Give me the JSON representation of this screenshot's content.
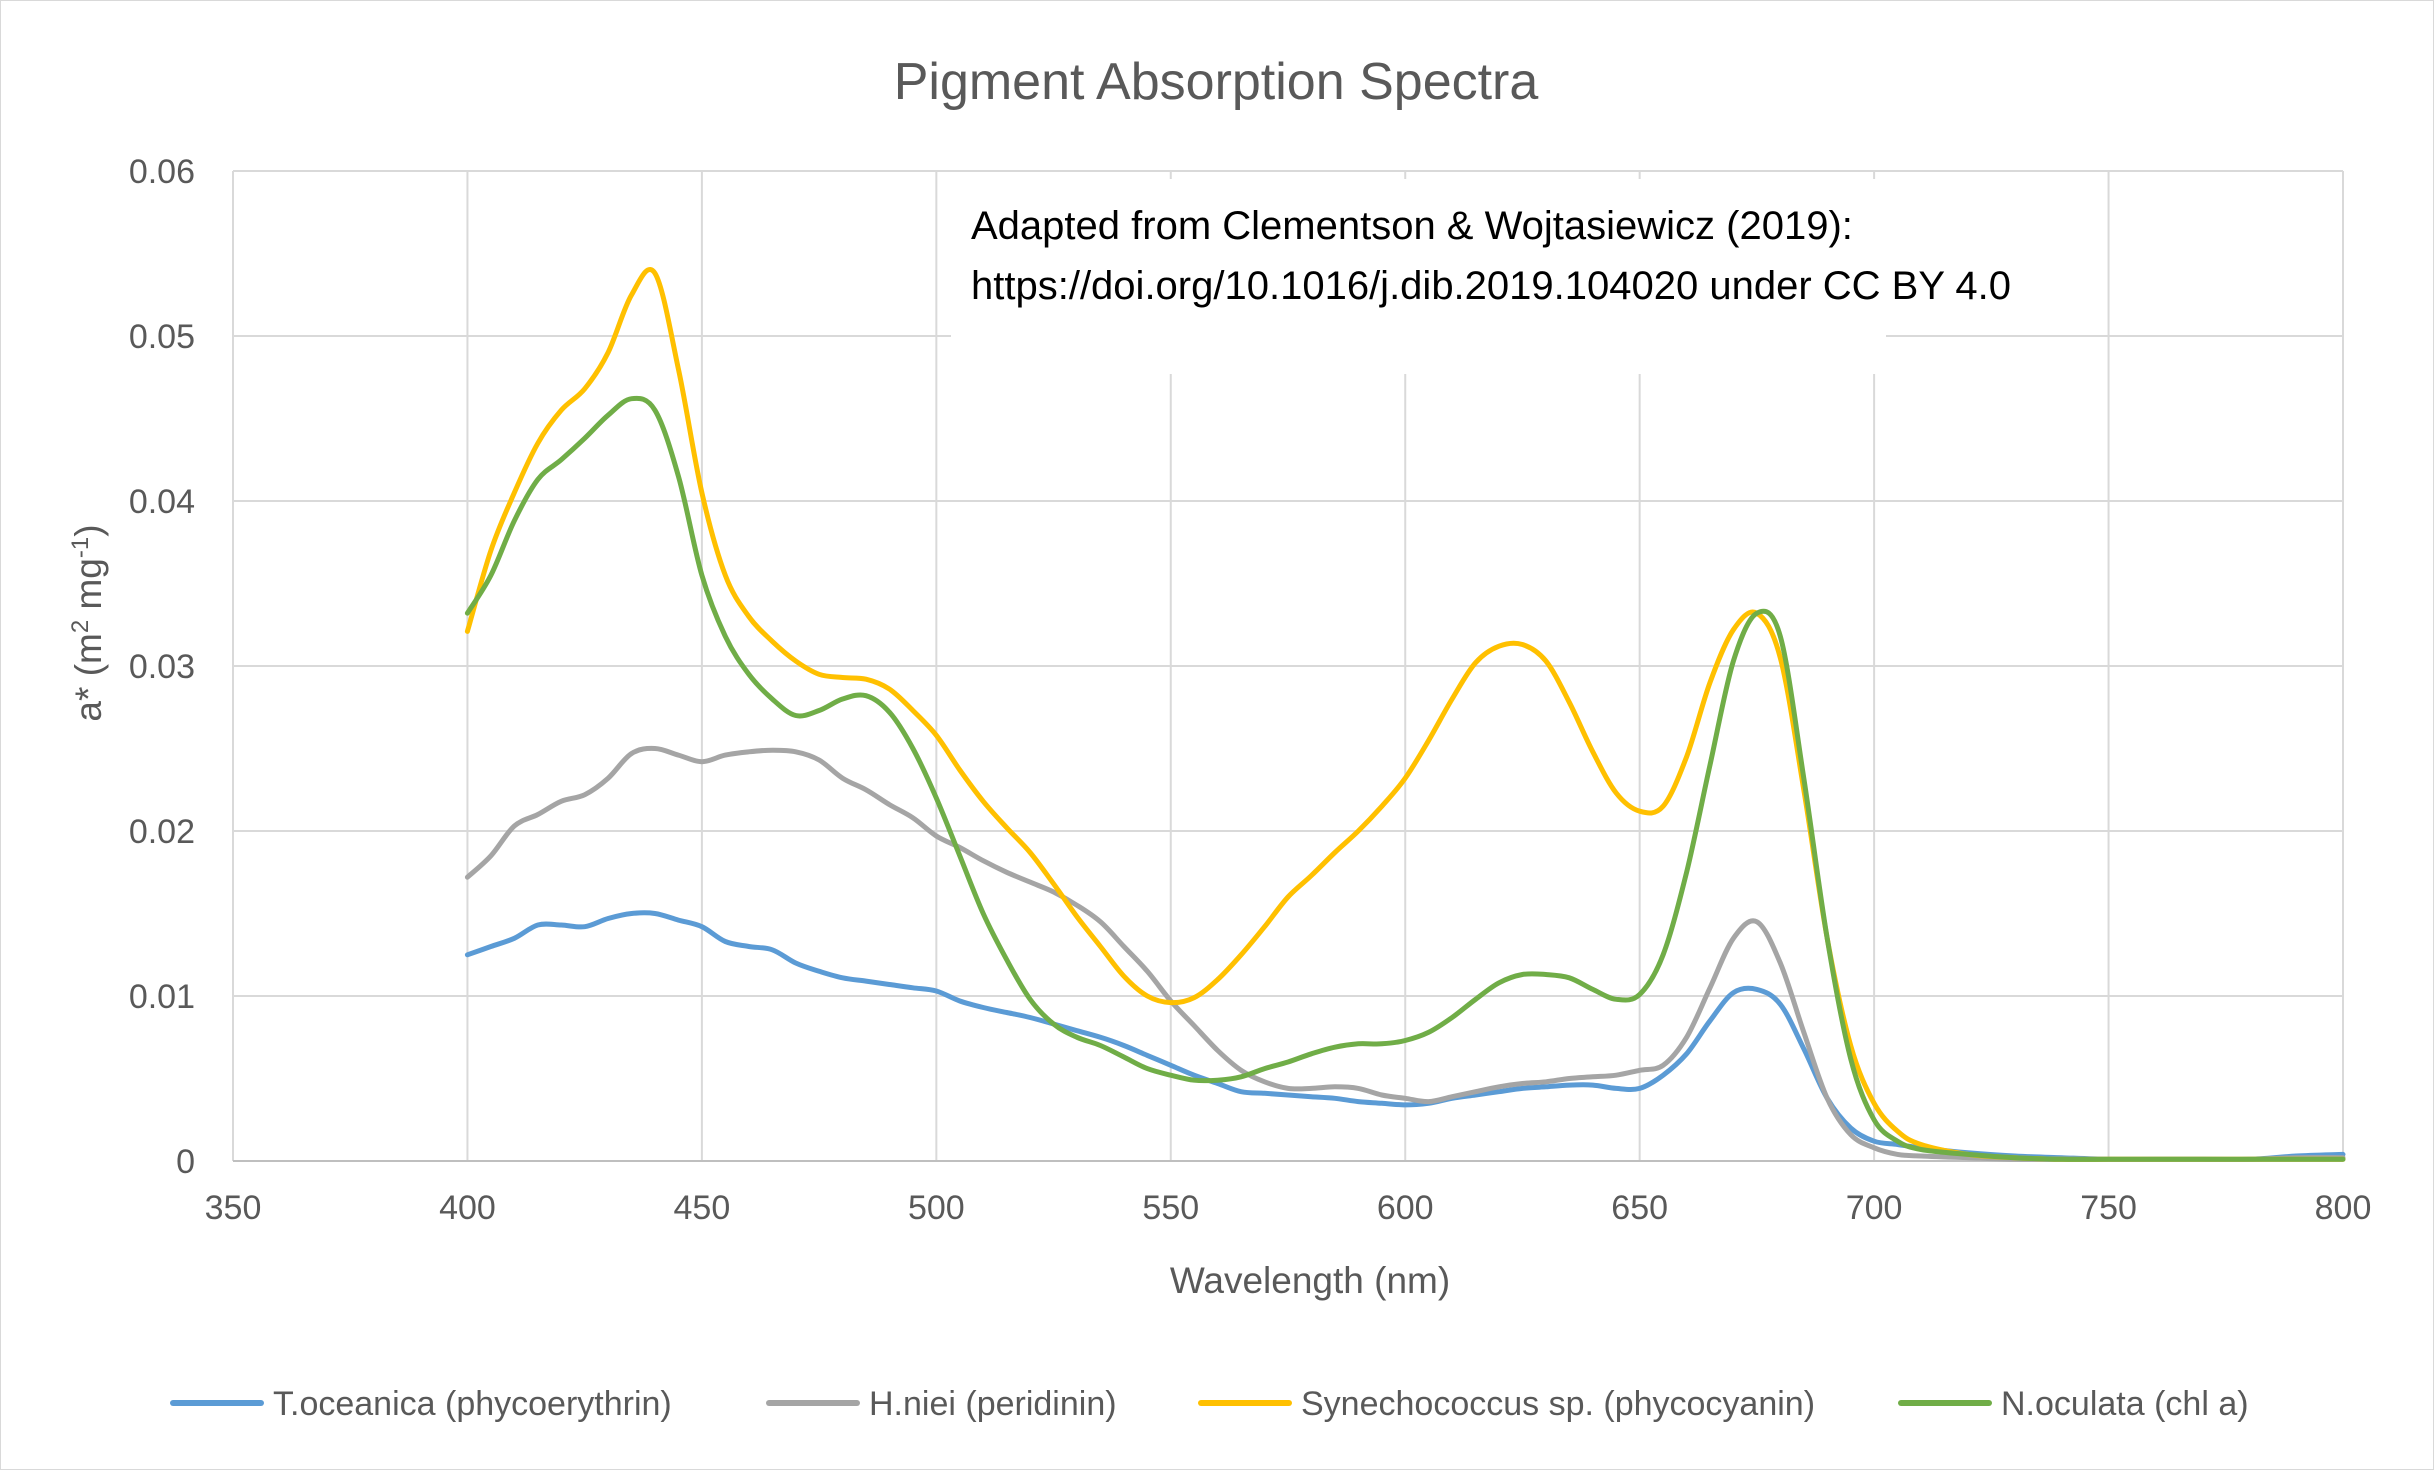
{
  "chart_data": {
    "type": "line",
    "title": "Pigment Absorption Spectra",
    "xlabel": "Wavelength (nm)",
    "ylabel": {
      "prefix": "a* (m",
      "sup1": "2",
      "middle": " mg",
      "sup2": "-1",
      "suffix": ")"
    },
    "xlim": [
      350,
      800
    ],
    "ylim": [
      0,
      0.06
    ],
    "x_ticks": [
      350,
      400,
      450,
      500,
      550,
      600,
      650,
      700,
      750,
      800
    ],
    "y_ticks": [
      0,
      0.01,
      0.02,
      0.03,
      0.04,
      0.05,
      0.06
    ],
    "x_tick_labels": [
      "350",
      "400",
      "450",
      "500",
      "550",
      "600",
      "650",
      "700",
      "750",
      "800"
    ],
    "y_tick_labels": [
      "0",
      "0.01",
      "0.02",
      "0.03",
      "0.04",
      "0.05",
      "0.06"
    ],
    "grid": true,
    "legend_position": "bottom",
    "annotation": {
      "line1": "Adapted from Clementson & Wojtasiewicz (2019):",
      "line2": "https://doi.org/10.1016/j.dib.2019.104020 under CC BY 4.0"
    },
    "series": [
      {
        "name": "T.oceanica (phycoerythrin)",
        "color": "#5b9bd5",
        "x": [
          400,
          405,
          410,
          415,
          420,
          425,
          430,
          435,
          440,
          445,
          450,
          455,
          460,
          465,
          470,
          475,
          480,
          485,
          490,
          495,
          500,
          505,
          510,
          515,
          520,
          525,
          530,
          535,
          540,
          545,
          550,
          555,
          560,
          565,
          570,
          575,
          580,
          585,
          590,
          595,
          600,
          605,
          610,
          615,
          620,
          625,
          630,
          635,
          640,
          645,
          650,
          655,
          660,
          665,
          670,
          675,
          680,
          685,
          690,
          695,
          700,
          705,
          710,
          720,
          730,
          740,
          750,
          760,
          770,
          780,
          790,
          800
        ],
        "y": [
          0.0125,
          0.013,
          0.0135,
          0.0143,
          0.0143,
          0.0142,
          0.0147,
          0.015,
          0.015,
          0.0146,
          0.0142,
          0.0133,
          0.013,
          0.0128,
          0.012,
          0.0115,
          0.0111,
          0.0109,
          0.0107,
          0.0105,
          0.0103,
          0.0097,
          0.0093,
          0.009,
          0.0087,
          0.0083,
          0.0079,
          0.0075,
          0.007,
          0.0064,
          0.0058,
          0.0052,
          0.0047,
          0.0042,
          0.0041,
          0.004,
          0.0039,
          0.0038,
          0.0036,
          0.0035,
          0.0034,
          0.0035,
          0.0038,
          0.004,
          0.0042,
          0.0044,
          0.0045,
          0.0046,
          0.0046,
          0.0044,
          0.0044,
          0.0052,
          0.0065,
          0.0085,
          0.0102,
          0.0104,
          0.0095,
          0.0068,
          0.0038,
          0.002,
          0.0012,
          0.001,
          0.0008,
          0.0005,
          0.0003,
          0.0002,
          0.0001,
          0.0001,
          0.0001,
          0.0001,
          0.0003,
          0.0004
        ]
      },
      {
        "name": "H.niei (peridinin)",
        "color": "#a5a5a5",
        "x": [
          400,
          405,
          410,
          415,
          420,
          425,
          430,
          435,
          440,
          445,
          450,
          455,
          460,
          465,
          470,
          475,
          480,
          485,
          490,
          495,
          500,
          505,
          510,
          515,
          520,
          525,
          530,
          535,
          540,
          545,
          550,
          555,
          560,
          565,
          570,
          575,
          580,
          585,
          590,
          595,
          600,
          605,
          610,
          615,
          620,
          625,
          630,
          635,
          640,
          645,
          650,
          655,
          660,
          665,
          670,
          675,
          680,
          685,
          690,
          695,
          700,
          705,
          710,
          720,
          730,
          740,
          750,
          760,
          770,
          780,
          790,
          800
        ],
        "y": [
          0.0172,
          0.0185,
          0.0203,
          0.021,
          0.0218,
          0.0222,
          0.0232,
          0.0247,
          0.025,
          0.0246,
          0.0242,
          0.0246,
          0.0248,
          0.0249,
          0.0248,
          0.0243,
          0.0232,
          0.0225,
          0.0216,
          0.0208,
          0.0197,
          0.019,
          0.0182,
          0.0175,
          0.0169,
          0.0163,
          0.0155,
          0.0145,
          0.013,
          0.0115,
          0.0097,
          0.0082,
          0.0067,
          0.0055,
          0.0048,
          0.0044,
          0.0044,
          0.0045,
          0.0044,
          0.004,
          0.0038,
          0.0036,
          0.0039,
          0.0042,
          0.0045,
          0.0047,
          0.0048,
          0.005,
          0.0051,
          0.0052,
          0.0055,
          0.0058,
          0.0075,
          0.0105,
          0.0135,
          0.0145,
          0.012,
          0.0078,
          0.0038,
          0.0016,
          0.0008,
          0.0004,
          0.0003,
          0.0002,
          0.0001,
          0.0001,
          0.0001,
          0.0001,
          0.0001,
          0.0001,
          0.0002,
          0.0002
        ]
      },
      {
        "name": "Synechococcus sp. (phycocyanin)",
        "color": "#ffc000",
        "x": [
          400,
          405,
          410,
          415,
          420,
          425,
          430,
          435,
          440,
          445,
          450,
          455,
          460,
          465,
          470,
          475,
          480,
          485,
          490,
          495,
          500,
          505,
          510,
          515,
          520,
          525,
          530,
          535,
          540,
          545,
          550,
          555,
          560,
          565,
          570,
          575,
          580,
          585,
          590,
          595,
          600,
          605,
          610,
          615,
          620,
          625,
          630,
          635,
          640,
          645,
          650,
          655,
          660,
          665,
          670,
          675,
          680,
          685,
          690,
          695,
          700,
          705,
          710,
          720,
          730,
          740,
          750,
          760,
          770,
          780,
          790,
          800
        ],
        "y": [
          0.0321,
          0.037,
          0.0405,
          0.0435,
          0.0455,
          0.0468,
          0.049,
          0.0525,
          0.0538,
          0.048,
          0.0405,
          0.0355,
          0.033,
          0.0315,
          0.0303,
          0.0295,
          0.0293,
          0.0292,
          0.0286,
          0.0273,
          0.0258,
          0.0237,
          0.0218,
          0.0202,
          0.0187,
          0.0168,
          0.0148,
          0.013,
          0.0112,
          0.01,
          0.0096,
          0.0099,
          0.011,
          0.0125,
          0.0142,
          0.016,
          0.0173,
          0.0187,
          0.02,
          0.0215,
          0.0232,
          0.0255,
          0.028,
          0.0302,
          0.0312,
          0.0313,
          0.0303,
          0.0278,
          0.0248,
          0.0223,
          0.0212,
          0.0215,
          0.0245,
          0.029,
          0.0322,
          0.0332,
          0.0305,
          0.0225,
          0.0135,
          0.007,
          0.0035,
          0.0018,
          0.001,
          0.0004,
          0.0002,
          0.0001,
          0.0001,
          0.0001,
          0.0001,
          0.0001,
          0.0001,
          0.0001
        ]
      },
      {
        "name": "N.oculata (chl a)",
        "color": "#70ad47",
        "x": [
          400,
          405,
          410,
          415,
          420,
          425,
          430,
          435,
          440,
          445,
          450,
          455,
          460,
          465,
          470,
          475,
          480,
          485,
          490,
          495,
          500,
          505,
          510,
          515,
          520,
          525,
          530,
          535,
          540,
          545,
          550,
          555,
          560,
          565,
          570,
          575,
          580,
          585,
          590,
          595,
          600,
          605,
          610,
          615,
          620,
          625,
          630,
          635,
          640,
          645,
          650,
          655,
          660,
          665,
          670,
          675,
          680,
          685,
          690,
          695,
          700,
          705,
          710,
          720,
          730,
          740,
          750,
          760,
          770,
          780,
          790,
          800
        ],
        "y": [
          0.0332,
          0.0355,
          0.0388,
          0.0413,
          0.0425,
          0.0438,
          0.0452,
          0.0462,
          0.0455,
          0.0415,
          0.0355,
          0.0318,
          0.0295,
          0.028,
          0.027,
          0.0273,
          0.028,
          0.0282,
          0.0272,
          0.025,
          0.022,
          0.0185,
          0.015,
          0.0122,
          0.0098,
          0.0083,
          0.0075,
          0.007,
          0.0063,
          0.0056,
          0.0052,
          0.0049,
          0.0049,
          0.0051,
          0.0056,
          0.006,
          0.0065,
          0.0069,
          0.0071,
          0.0071,
          0.0073,
          0.0078,
          0.0087,
          0.0098,
          0.0108,
          0.0113,
          0.0113,
          0.0111,
          0.0104,
          0.0098,
          0.0101,
          0.0125,
          0.0175,
          0.024,
          0.0303,
          0.0332,
          0.0318,
          0.0232,
          0.0135,
          0.0062,
          0.0025,
          0.0012,
          0.0007,
          0.0004,
          0.0002,
          0.0001,
          0.0001,
          0.0001,
          0.0001,
          0.0001,
          0.0001,
          0.0001
        ]
      }
    ]
  }
}
